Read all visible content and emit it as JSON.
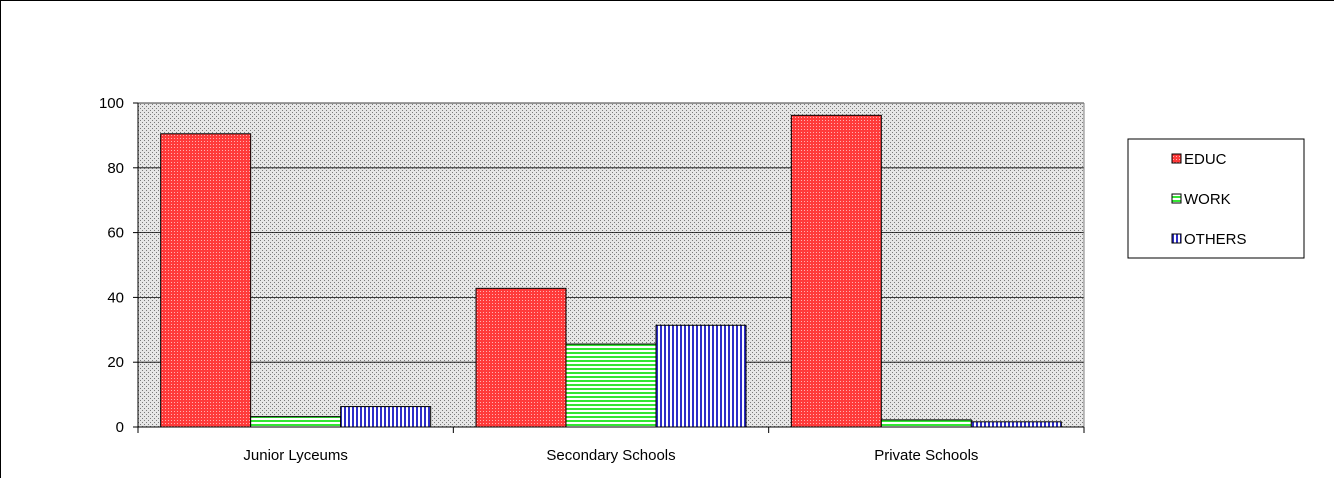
{
  "chart_data": {
    "type": "bar",
    "title": "",
    "xlabel": "",
    "ylabel": "",
    "categories": [
      "Junior Lyceums",
      "Secondary Schools",
      "Private Schools"
    ],
    "series": [
      {
        "name": "EDUC",
        "values": [
          90.5,
          42.8,
          96.2
        ],
        "color": "#ff3b3b",
        "pattern": "dotted"
      },
      {
        "name": "WORK",
        "values": [
          3.2,
          25.6,
          2.2
        ],
        "color": "#33ee33",
        "pattern": "horizontal-lines"
      },
      {
        "name": "OTHERS",
        "values": [
          6.3,
          31.4,
          1.6
        ],
        "color": "#3333cc",
        "pattern": "vertical-lines"
      }
    ],
    "ylim": [
      0,
      100
    ],
    "yticks": [
      "0",
      "20",
      "40",
      "60",
      "80",
      "100"
    ],
    "grid": true,
    "legend": "right",
    "plot_background": "dotted-gray"
  }
}
